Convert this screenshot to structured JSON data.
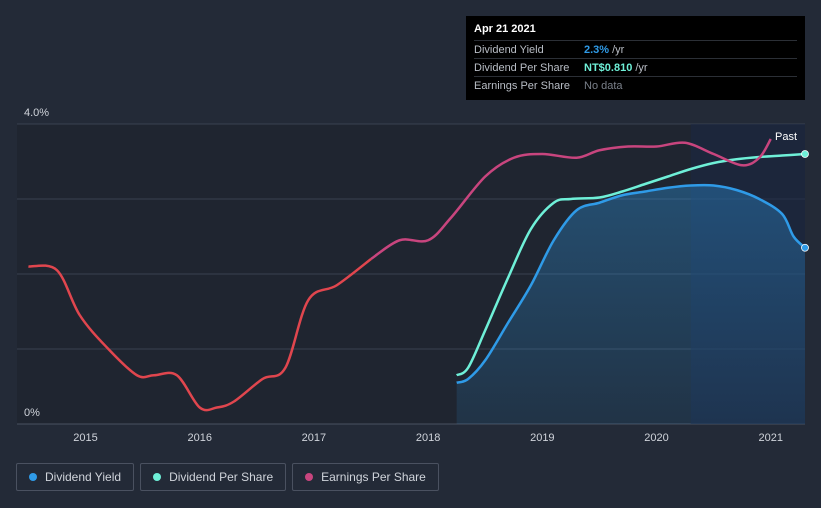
{
  "tooltip": {
    "date": "Apr 21 2021",
    "rows": [
      {
        "label": "Dividend Yield",
        "value": "2.3%",
        "unit": "/yr",
        "color": "#2f9be8"
      },
      {
        "label": "Dividend Per Share",
        "value": "NT$0.810",
        "unit": "/yr",
        "color": "#6ff0d8"
      },
      {
        "label": "Earnings Per Share",
        "value": "No data",
        "unit": "",
        "color": ""
      }
    ]
  },
  "legend": [
    {
      "label": "Dividend Yield",
      "color": "#2f9be8"
    },
    {
      "label": "Dividend Per Share",
      "color": "#6ff0d8"
    },
    {
      "label": "Earnings Per Share",
      "color": "#c8457e"
    }
  ],
  "chart_data": {
    "type": "line",
    "y_tick_labels": [
      "4.0%",
      "0%"
    ],
    "ylim": [
      0,
      4.0
    ],
    "x_ticks": [
      "2015",
      "2016",
      "2017",
      "2018",
      "2019",
      "2020",
      "2021"
    ],
    "x_range": [
      2014.4,
      2021.3
    ],
    "past_label": "Past",
    "forecast_region_start": 2020.3,
    "series": [
      {
        "name": "Dividend Yield",
        "color": "#2f9be8",
        "fill": true,
        "x": [
          2018.25,
          2018.35,
          2018.5,
          2018.7,
          2018.9,
          2019.1,
          2019.3,
          2019.5,
          2019.7,
          2019.9,
          2020.1,
          2020.3,
          2020.5,
          2020.7,
          2020.9,
          2021.1,
          2021.2,
          2021.3
        ],
        "y": [
          0.55,
          0.6,
          0.85,
          1.35,
          1.85,
          2.45,
          2.85,
          2.95,
          3.05,
          3.1,
          3.15,
          3.18,
          3.18,
          3.12,
          3.0,
          2.8,
          2.5,
          2.35
        ]
      },
      {
        "name": "Dividend Per Share",
        "color": "#6ff0d8",
        "x": [
          2018.25,
          2018.35,
          2018.5,
          2018.7,
          2018.9,
          2019.1,
          2019.25,
          2019.5,
          2019.7,
          2019.9,
          2020.1,
          2020.3,
          2020.5,
          2020.7,
          2020.9,
          2021.1,
          2021.3
        ],
        "y": [
          0.65,
          0.75,
          1.25,
          1.95,
          2.6,
          2.95,
          3.0,
          3.02,
          3.1,
          3.2,
          3.3,
          3.4,
          3.48,
          3.53,
          3.56,
          3.58,
          3.6
        ]
      },
      {
        "name": "Earnings Per Share",
        "color": "#c8457e",
        "x": [
          2014.5,
          2014.75,
          2014.95,
          2015.2,
          2015.45,
          2015.6,
          2015.8,
          2016.0,
          2016.15,
          2016.3,
          2016.55,
          2016.75,
          2016.95,
          2017.2,
          2017.5,
          2017.75,
          2018.0,
          2018.2,
          2018.5,
          2018.75,
          2019.0,
          2019.3,
          2019.5,
          2019.75,
          2020.0,
          2020.25,
          2020.5,
          2020.75,
          2020.9,
          2021.0
        ],
        "y": [
          2.1,
          2.05,
          1.45,
          1.0,
          0.65,
          0.65,
          0.65,
          0.22,
          0.22,
          0.3,
          0.6,
          0.75,
          1.65,
          1.85,
          2.2,
          2.45,
          2.45,
          2.75,
          3.3,
          3.55,
          3.6,
          3.55,
          3.65,
          3.7,
          3.7,
          3.75,
          3.6,
          3.45,
          3.55,
          3.8
        ]
      }
    ]
  }
}
